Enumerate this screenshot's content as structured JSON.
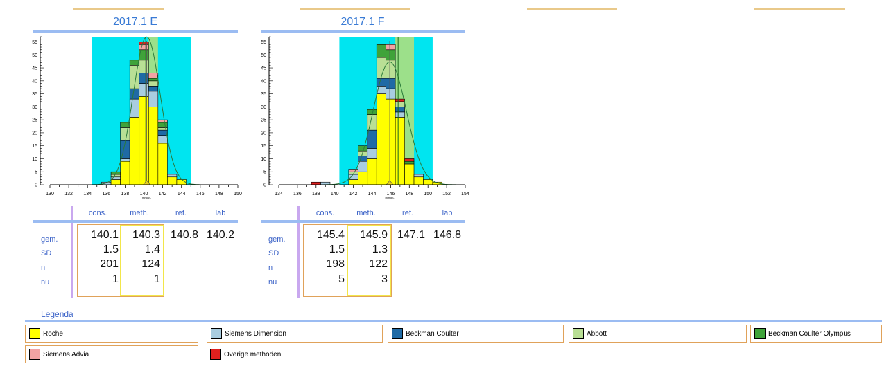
{
  "legend": {
    "title": "Legenda",
    "items": [
      {
        "name": "Roche",
        "color": "#ffff00"
      },
      {
        "name": "Siemens Dimension",
        "color": "#a9cde0"
      },
      {
        "name": "Beckman Coulter",
        "color": "#1f6aa5"
      },
      {
        "name": "Abbott",
        "color": "#b9df95"
      },
      {
        "name": "Beckman Coulter Olympus",
        "color": "#3fa33a"
      },
      {
        "name": "Siemens Advia",
        "color": "#f2a3a3"
      },
      {
        "name": "Overige methoden",
        "color": "#e0201e"
      }
    ]
  },
  "stats_columns": [
    "cons.",
    "meth.",
    "ref.",
    "lab"
  ],
  "stats_rows": [
    "gem.",
    "SD",
    "n",
    "nu"
  ],
  "chart_data": [
    {
      "type": "bar",
      "title": "2017.1 E",
      "xlabel": "mmol/L",
      "x_ticks": [
        130,
        132,
        134,
        136,
        138,
        140,
        142,
        144,
        146,
        148,
        150
      ],
      "y_ticks": [
        0,
        5,
        10,
        15,
        20,
        25,
        30,
        35,
        40,
        45,
        50,
        55
      ],
      "xlim": [
        130,
        150
      ],
      "ylim": [
        0,
        57
      ],
      "bin_width": 1,
      "highlight_band": [
        134.5,
        145
      ],
      "ref_band": [
        140.5,
        141.5
      ],
      "lines": {
        "lab": 140.2,
        "meth": 140.3
      },
      "bins": [
        {
          "x": 136,
          "s": [
            0,
            1,
            0,
            0,
            0,
            0,
            0
          ]
        },
        {
          "x": 137,
          "s": [
            2,
            1,
            0,
            1,
            1,
            0,
            0
          ]
        },
        {
          "x": 138,
          "s": [
            9,
            1,
            7,
            5,
            2,
            0,
            0
          ]
        },
        {
          "x": 139,
          "s": [
            26,
            7,
            4,
            9,
            2,
            0,
            0
          ]
        },
        {
          "x": 140,
          "s": [
            34,
            5,
            4,
            5,
            4,
            2,
            1
          ]
        },
        {
          "x": 141,
          "s": [
            30,
            6,
            2,
            2,
            1,
            2,
            0
          ]
        },
        {
          "x": 142,
          "s": [
            16,
            3,
            2,
            1,
            2,
            1,
            0
          ]
        },
        {
          "x": 143,
          "s": [
            3,
            1,
            0,
            0,
            0,
            0,
            0
          ]
        },
        {
          "x": 144,
          "s": [
            2,
            0,
            0,
            0,
            0,
            0,
            0
          ]
        }
      ],
      "stats": {
        "gem": [
          "140.1",
          "140.3",
          "140.8",
          "140.2"
        ],
        "sd": [
          "1.5",
          "1.4"
        ],
        "n": [
          "201",
          "124"
        ],
        "nu": [
          "1",
          "1"
        ]
      }
    },
    {
      "type": "bar",
      "title": "2017.1 F",
      "xlabel": "mmol/L",
      "x_ticks": [
        134,
        136,
        138,
        140,
        142,
        144,
        146,
        148,
        150,
        152,
        154
      ],
      "y_ticks": [
        0,
        5,
        10,
        15,
        20,
        25,
        30,
        35,
        40,
        45,
        50,
        55
      ],
      "xlim": [
        134,
        154
      ],
      "ylim": [
        0,
        57
      ],
      "bin_width": 1,
      "highlight_band": [
        140.5,
        150.5
      ],
      "ref_band": [
        146.5,
        148.5
      ],
      "lines": {
        "lab": 146.8,
        "meth": 145.9
      },
      "bins": [
        {
          "x": 138,
          "s": [
            0,
            0,
            0,
            0,
            0,
            0,
            1
          ]
        },
        {
          "x": 139,
          "s": [
            0,
            1,
            0,
            0,
            0,
            0,
            0
          ]
        },
        {
          "x": 142,
          "s": [
            2,
            2,
            0,
            1,
            0,
            1,
            0
          ]
        },
        {
          "x": 143,
          "s": [
            5,
            4,
            2,
            2,
            2,
            0,
            0
          ]
        },
        {
          "x": 144,
          "s": [
            10,
            4,
            7,
            6,
            2,
            0,
            0
          ]
        },
        {
          "x": 145,
          "s": [
            35,
            3,
            3,
            8,
            5,
            0,
            0
          ]
        },
        {
          "x": 146,
          "s": [
            33,
            4,
            4,
            7,
            4,
            2,
            0
          ]
        },
        {
          "x": 147,
          "s": [
            26,
            2,
            2,
            2,
            0,
            0,
            1
          ]
        },
        {
          "x": 148,
          "s": [
            8,
            0,
            0,
            0,
            1,
            0,
            1
          ]
        },
        {
          "x": 149,
          "s": [
            3,
            1,
            0,
            0,
            0,
            0,
            0
          ]
        },
        {
          "x": 150,
          "s": [
            2,
            0,
            0,
            0,
            0,
            0,
            0
          ]
        },
        {
          "x": 151,
          "s": [
            1,
            0,
            0,
            0,
            0,
            0,
            0
          ]
        }
      ],
      "stats": {
        "gem": [
          "145.4",
          "145.9",
          "147.1",
          "146.8"
        ],
        "sd": [
          "1.5",
          "1.3"
        ],
        "n": [
          "198",
          "122"
        ],
        "nu": [
          "5",
          "3"
        ]
      }
    }
  ]
}
